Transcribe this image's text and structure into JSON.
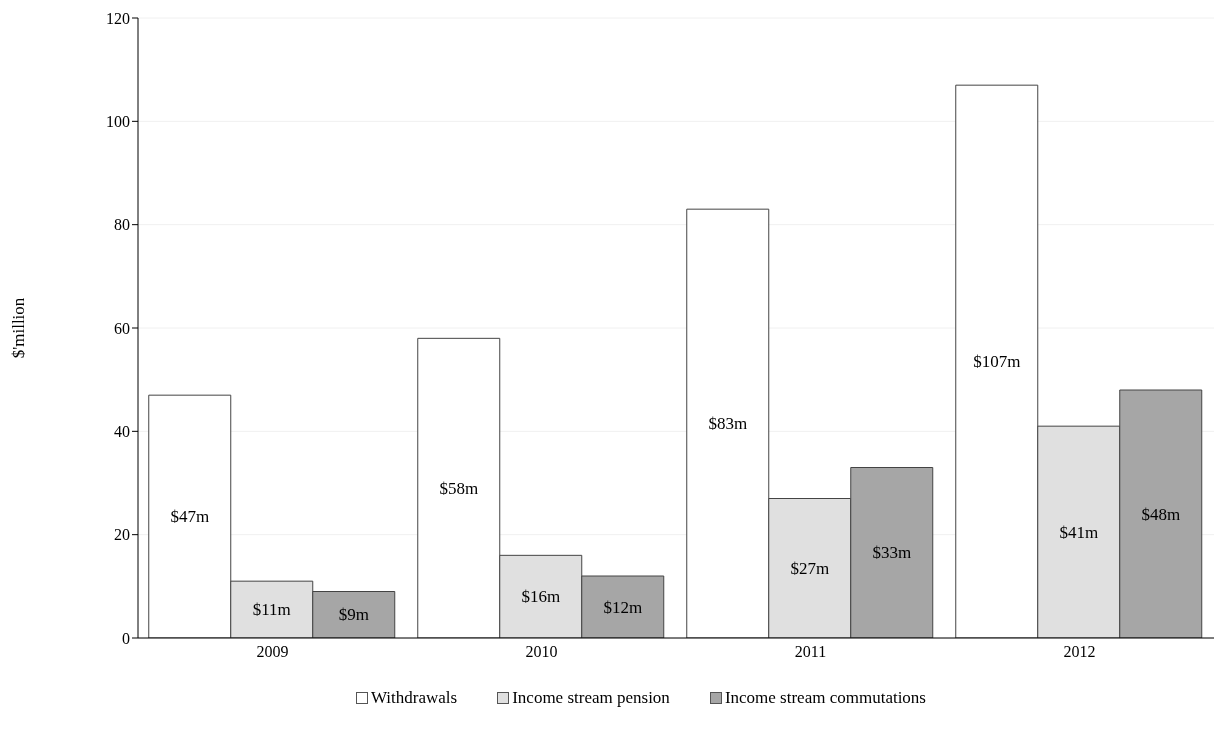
{
  "chart_data": {
    "type": "bar",
    "ylabel": "$'million",
    "categories": [
      "2009",
      "2010",
      "2011",
      "2012"
    ],
    "series": [
      {
        "name": "Withdrawals",
        "color": "#ffffff",
        "values": [
          47,
          58,
          83,
          107
        ],
        "value_labels": [
          "$47m",
          "$58m",
          "$83m",
          "$107m"
        ]
      },
      {
        "name": "Income stream pension",
        "color": "#e0e0e0",
        "values": [
          11,
          16,
          27,
          41
        ],
        "value_labels": [
          "$11m",
          "$16m",
          "$27m",
          "$41m"
        ]
      },
      {
        "name": "Income stream commutations",
        "color": "#a6a6a6",
        "values": [
          9,
          12,
          33,
          48
        ],
        "value_labels": [
          "$9m",
          "$12m",
          "$33m",
          "$48m"
        ]
      }
    ],
    "ylim": [
      0,
      120
    ],
    "yticks": [
      0,
      20,
      40,
      60,
      80,
      100,
      120
    ],
    "grid": "y",
    "legend": "bottom"
  }
}
